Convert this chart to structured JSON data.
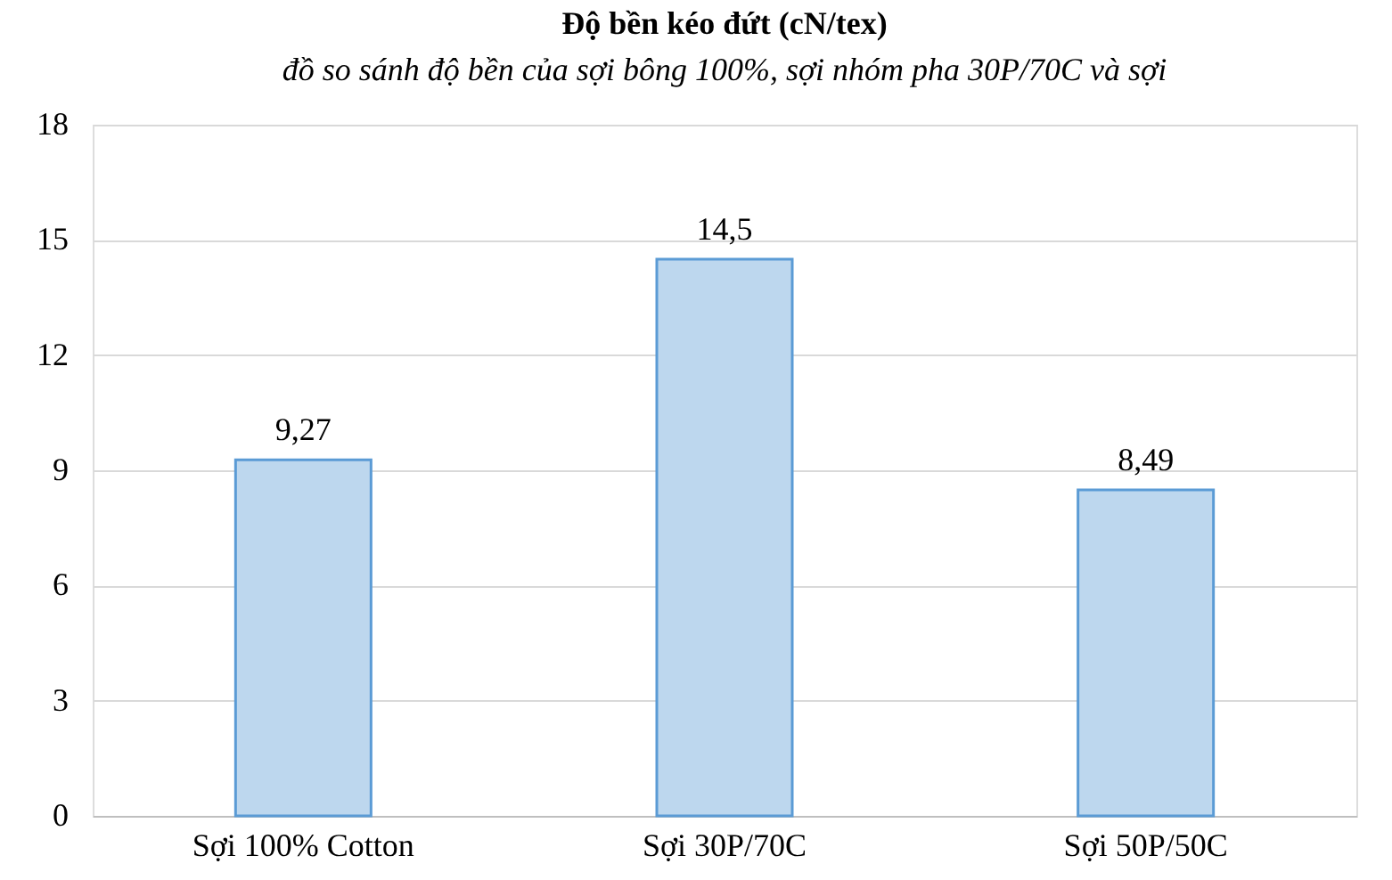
{
  "chart_data": {
    "type": "bar",
    "title": "Độ bền kéo đứt (cN/tex)",
    "annotations": [
      "đồ so sánh độ bền của sợi bông 100%, sợi nhóm pha 30P/70C và sợi"
    ],
    "categories": [
      "Sợi 100% Cotton",
      "Sợi 30P/70C",
      "Sợi 50P/50C"
    ],
    "values": [
      9.27,
      14.5,
      8.49
    ],
    "color": "#bdd7ee",
    "ylim": [
      0,
      18
    ],
    "yticks": [
      0,
      3,
      6,
      9,
      12,
      15,
      18
    ],
    "grid": "y",
    "value_labels": [
      "9,27",
      "14,5",
      "8,49"
    ]
  }
}
